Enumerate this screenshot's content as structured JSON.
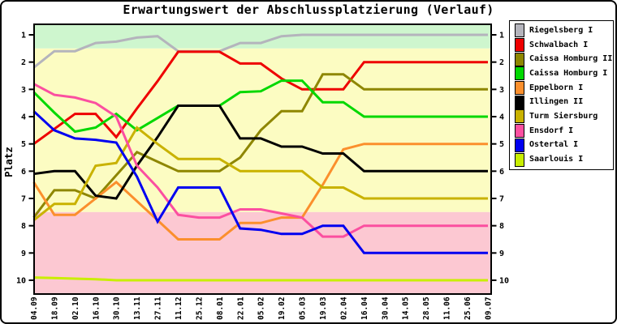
{
  "title": "Erwartungswert der Abschlussplatzierung (Verlauf)",
  "chart_data": {
    "type": "line",
    "title": "Erwartungswert der Abschlussplatzierung (Verlauf)",
    "xlabel": "",
    "ylabel": "Platz",
    "y_inverted": true,
    "ylim": [
      1,
      10
    ],
    "grid": false,
    "legend_position": "right",
    "y_ticks": [
      1,
      2,
      3,
      4,
      5,
      6,
      7,
      8,
      9,
      10
    ],
    "x_tick_labels": [
      "04.09",
      "18.09",
      "02.10",
      "16.10",
      "30.10",
      "13.11",
      "27.11",
      "11.12",
      "25.12",
      "08.01",
      "22.01",
      "05.02",
      "19.02",
      "05.03",
      "19.03",
      "02.04",
      "16.04",
      "30.04",
      "14.05",
      "28.05",
      "11.06",
      "25.06",
      "09.07"
    ],
    "zones": [
      {
        "name": "top-zone",
        "from_rank": null,
        "to_rank": 1.5,
        "color": "#cef6ce"
      },
      {
        "name": "middle-zone",
        "from_rank": 1.5,
        "to_rank": 7.5,
        "color": "#fcfcc2"
      },
      {
        "name": "bottom-zone",
        "from_rank": 7.5,
        "to_rank": null,
        "color": "#fcc8d2"
      }
    ],
    "series": [
      {
        "name": "Riegelsberg I",
        "color": "#b4b4bc",
        "values": [
          2.2,
          1.6,
          1.6,
          1.3,
          1.25,
          1.1,
          1.05,
          1.6,
          1.6,
          1.6,
          1.3,
          1.3,
          1.05,
          1,
          1,
          1,
          1,
          1,
          1,
          1,
          1,
          1,
          1
        ]
      },
      {
        "name": "Schwalbach I",
        "color": "#ee0000",
        "values": [
          5,
          4.45,
          3.9,
          3.9,
          4.75,
          3.7,
          2.7,
          1.62,
          1.62,
          1.62,
          2.05,
          2.05,
          2.6,
          3,
          3,
          3,
          2,
          2,
          2,
          2,
          2,
          2,
          2
        ]
      },
      {
        "name": "Caissa Homburg II",
        "color": "#8e8600",
        "values": [
          7.7,
          6.7,
          6.7,
          7,
          6.15,
          5.3,
          5.65,
          6,
          6,
          6,
          5.5,
          4.5,
          3.8,
          3.8,
          2.45,
          2.45,
          3,
          3,
          3,
          3,
          3,
          3,
          3
        ]
      },
      {
        "name": "Caissa Homburg I",
        "color": "#00d800",
        "values": [
          3.1,
          3.85,
          4.55,
          4.4,
          3.9,
          4.5,
          4.05,
          3.6,
          3.6,
          3.6,
          3.1,
          3.07,
          2.68,
          2.68,
          3.47,
          3.47,
          4,
          4,
          4,
          4,
          4,
          4,
          4
        ]
      },
      {
        "name": "Eppelborn I",
        "color": "#fb8f2d",
        "values": [
          6.4,
          7.6,
          7.6,
          7,
          6.4,
          7.1,
          7.8,
          8.5,
          8.5,
          8.5,
          7.9,
          7.9,
          7.7,
          7.7,
          6.5,
          5.2,
          5,
          5,
          5,
          5,
          5,
          5,
          5
        ]
      },
      {
        "name": "Illingen II",
        "color": "#000000",
        "values": [
          6.1,
          6,
          6,
          6.9,
          7,
          5.8,
          4.75,
          3.6,
          3.6,
          3.6,
          4.8,
          4.8,
          5.1,
          5.1,
          5.35,
          5.35,
          6,
          6,
          6,
          6,
          6,
          6,
          6
        ]
      },
      {
        "name": "Turm Siersburg",
        "color": "#c9b200",
        "values": [
          7.8,
          7.2,
          7.2,
          5.8,
          5.7,
          4.4,
          5,
          5.55,
          5.55,
          5.55,
          6,
          6,
          6,
          6,
          6.6,
          6.6,
          7,
          7,
          7,
          7,
          7,
          7,
          7
        ]
      },
      {
        "name": "Ensdorf I",
        "color": "#fb4fa0",
        "values": [
          2.8,
          3.2,
          3.3,
          3.5,
          4,
          5.8,
          6.6,
          7.6,
          7.7,
          7.7,
          7.4,
          7.4,
          7.55,
          7.7,
          8.4,
          8.4,
          8,
          8,
          8,
          8,
          8,
          8,
          8
        ]
      },
      {
        "name": "Ostertal I",
        "color": "#0000f0",
        "values": [
          3.8,
          4.5,
          4.8,
          4.85,
          4.95,
          6.2,
          7.85,
          6.6,
          6.6,
          6.6,
          8.1,
          8.15,
          8.3,
          8.3,
          8,
          8,
          9,
          9,
          9,
          9,
          9,
          9,
          9
        ]
      },
      {
        "name": "Saarlouis I",
        "color": "#c9ee00",
        "values": [
          9.9,
          9.92,
          9.94,
          9.96,
          10,
          10,
          10,
          10,
          10,
          10,
          10,
          10,
          10,
          10,
          10,
          10,
          10,
          10,
          10,
          10,
          10,
          10,
          10
        ]
      }
    ]
  }
}
